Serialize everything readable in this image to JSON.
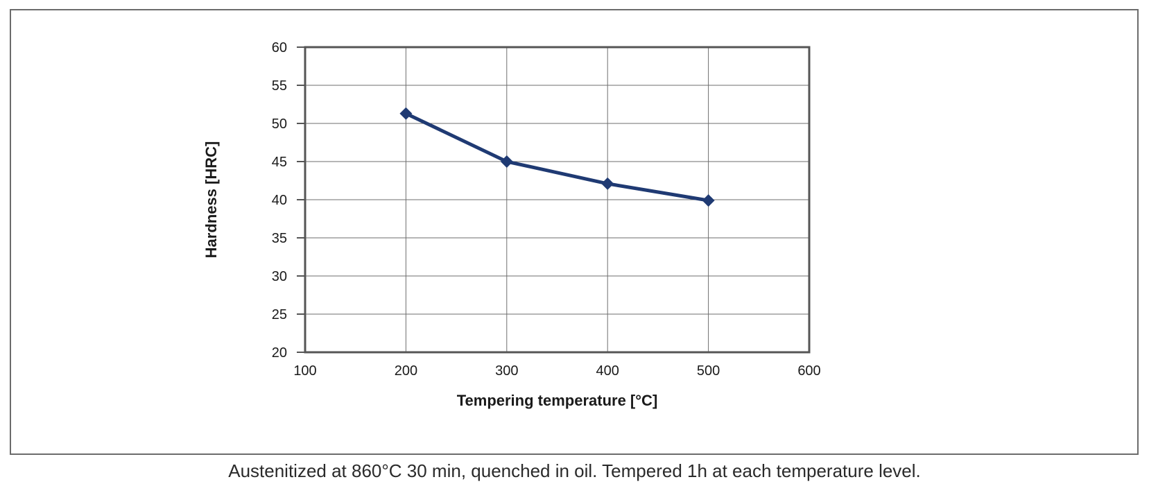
{
  "chart_data": {
    "type": "line",
    "title": "",
    "xlabel": "Tempering temperature [°C]",
    "ylabel": "Hardness [HRC]",
    "xlim": [
      100,
      600
    ],
    "ylim": [
      20,
      60
    ],
    "xticks": [
      100,
      200,
      300,
      400,
      500,
      600
    ],
    "yticks": [
      20,
      25,
      30,
      35,
      40,
      45,
      50,
      55,
      60
    ],
    "grid": true,
    "legend": "none",
    "series": [
      {
        "marker": "diamond",
        "color": "#1f3a73",
        "x": [
          200,
          300,
          400,
          500
        ],
        "y": [
          51.3,
          45.0,
          42.1,
          39.9
        ]
      }
    ]
  },
  "caption": "Austenitized at 860°C 30 min, quenched in oil. Tempered 1h at each temperature level."
}
